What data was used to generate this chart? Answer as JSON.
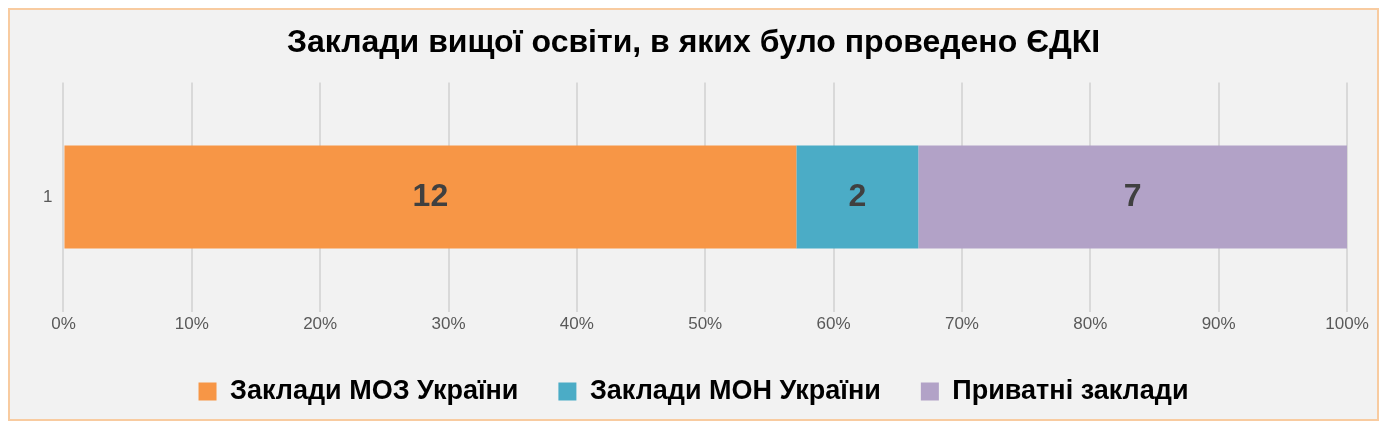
{
  "chart_data": {
    "type": "bar",
    "title": "Заклади вищої освіти, в яких було проведено ЄДКІ",
    "orientation": "horizontal",
    "stacked": true,
    "categories": [
      "1"
    ],
    "series": [
      {
        "name": "Заклади МОЗ України",
        "color": "#f79646",
        "values": [
          57.1
        ]
      },
      {
        "name": "Заклади МОН України",
        "color": "#4bacc6",
        "values": [
          9.5
        ]
      },
      {
        "name": "Приватні заклади",
        "color": "#b2a2c7",
        "values": [
          33.4
        ]
      }
    ],
    "annotations": [
      "12",
      "2",
      "7"
    ],
    "xlim": [
      0,
      100
    ],
    "xticks": [
      {
        "value": 0,
        "label": "0%"
      },
      {
        "value": 10,
        "label": "10%"
      },
      {
        "value": 20,
        "label": "20%"
      },
      {
        "value": 30,
        "label": "30%"
      },
      {
        "value": 40,
        "label": "40%"
      },
      {
        "value": 50,
        "label": "50%"
      },
      {
        "value": 60,
        "label": "60%"
      },
      {
        "value": 70,
        "label": "70%"
      },
      {
        "value": 80,
        "label": "80%"
      },
      {
        "value": 90,
        "label": "90%"
      },
      {
        "value": 100,
        "label": "100%"
      }
    ],
    "grid": "x",
    "legend": "bottom"
  }
}
